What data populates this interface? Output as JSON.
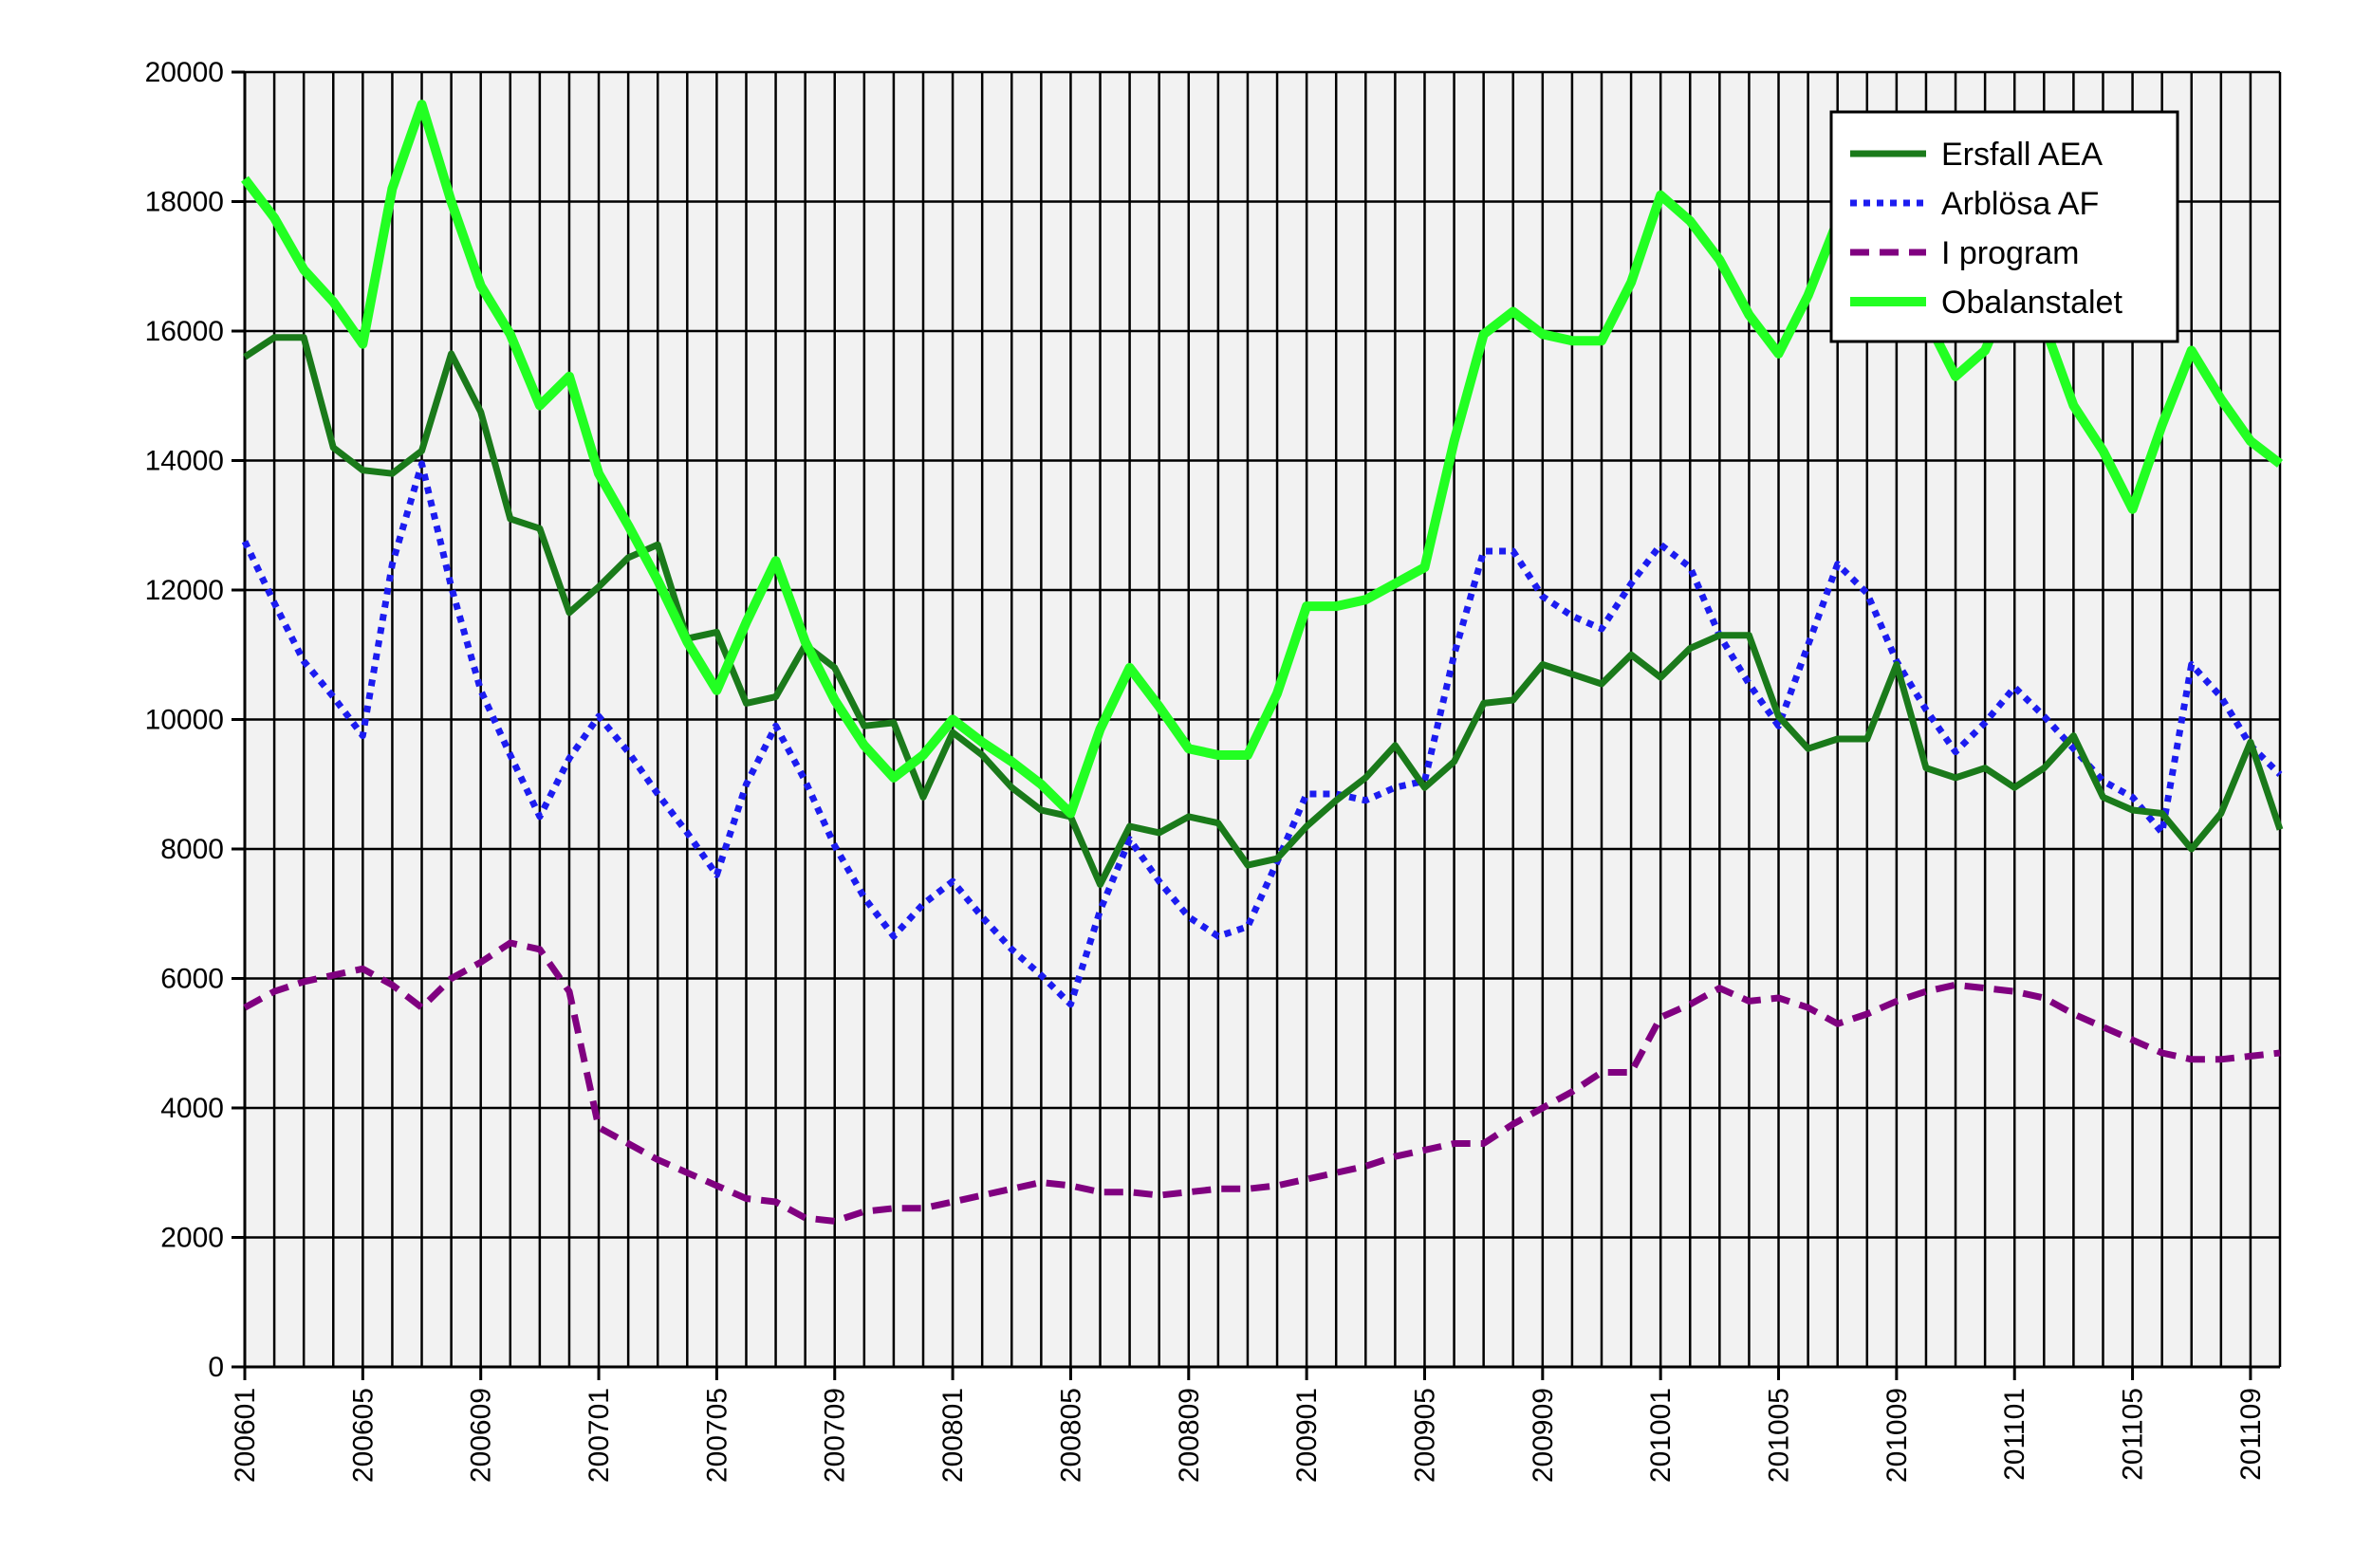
{
  "chart_data": {
    "type": "line",
    "title": "",
    "xlabel": "",
    "ylabel": "",
    "ylim": [
      0,
      20000
    ],
    "yticks": [
      0,
      2000,
      4000,
      6000,
      8000,
      10000,
      12000,
      14000,
      16000,
      18000,
      20000
    ],
    "xtick_labels": [
      "200601",
      "200605",
      "200609",
      "200701",
      "200705",
      "200709",
      "200801",
      "200805",
      "200809",
      "200901",
      "200905",
      "200909",
      "201001",
      "201005",
      "201009",
      "201101",
      "201105",
      "201109"
    ],
    "x": [
      "200601",
      "200602",
      "200603",
      "200604",
      "200605",
      "200606",
      "200607",
      "200608",
      "200609",
      "200610",
      "200611",
      "200612",
      "200701",
      "200702",
      "200703",
      "200704",
      "200705",
      "200706",
      "200707",
      "200708",
      "200709",
      "200710",
      "200711",
      "200712",
      "200801",
      "200802",
      "200803",
      "200804",
      "200805",
      "200806",
      "200807",
      "200808",
      "200809",
      "200810",
      "200811",
      "200812",
      "200901",
      "200902",
      "200903",
      "200904",
      "200905",
      "200906",
      "200907",
      "200908",
      "200909",
      "200910",
      "200911",
      "200912",
      "201001",
      "201002",
      "201003",
      "201004",
      "201005",
      "201006",
      "201007",
      "201008",
      "201009",
      "201010",
      "201011",
      "201012",
      "201101",
      "201102",
      "201103",
      "201104",
      "201105",
      "201106",
      "201107",
      "201108",
      "201109",
      "201110"
    ],
    "grid": true,
    "legend_position": "top-right",
    "series": [
      {
        "name": "Ersfall AEA",
        "color": "#1a7a1a",
        "style": "solid",
        "values": [
          15600,
          15900,
          15900,
          14200,
          13850,
          13800,
          14150,
          15650,
          14750,
          13100,
          12950,
          11650,
          12050,
          12500,
          12700,
          11250,
          11350,
          10250,
          10350,
          11150,
          10800,
          9900,
          9950,
          8800,
          9800,
          9450,
          8950,
          8600,
          8500,
          7450,
          8350,
          8250,
          8500,
          8400,
          7750,
          7850,
          8350,
          8750,
          9100,
          9600,
          8950,
          9350,
          10250,
          10300,
          10850,
          10700,
          10550,
          11000,
          10650,
          11100,
          11300,
          11300,
          10050,
          9550,
          9700,
          9700,
          10850,
          9250,
          9100,
          9250,
          8950,
          9250,
          9750,
          8800,
          8600,
          8550,
          8000,
          8550,
          9650,
          8300
        ]
      },
      {
        "name": "Arblösa AF",
        "color": "#1c1cf0",
        "style": "dotted",
        "values": [
          12750,
          11800,
          10900,
          10350,
          9750,
          12400,
          13950,
          12050,
          10450,
          9450,
          8500,
          9400,
          10050,
          9500,
          8850,
          8250,
          7600,
          9000,
          9900,
          9050,
          8050,
          7250,
          6650,
          7150,
          7500,
          6950,
          6450,
          6050,
          5600,
          7050,
          8150,
          7500,
          6950,
          6650,
          6800,
          7800,
          8850,
          8850,
          8750,
          8950,
          9050,
          11000,
          12600,
          12600,
          11900,
          11600,
          11400,
          12100,
          12700,
          12350,
          11300,
          10550,
          9900,
          11150,
          12400,
          11950,
          10900,
          10150,
          9500,
          9950,
          10500,
          10050,
          9550,
          9050,
          8800,
          8250,
          10850,
          10350,
          9600,
          9150
        ]
      },
      {
        "name": "I program",
        "color": "#800080",
        "style": "dashed",
        "values": [
          5550,
          5800,
          5950,
          6050,
          6150,
          5900,
          5550,
          6000,
          6250,
          6550,
          6450,
          5800,
          3700,
          3450,
          3200,
          3000,
          2800,
          2600,
          2550,
          2300,
          2250,
          2400,
          2450,
          2450,
          2550,
          2650,
          2750,
          2850,
          2800,
          2700,
          2700,
          2650,
          2700,
          2750,
          2750,
          2800,
          2900,
          3000,
          3100,
          3250,
          3350,
          3450,
          3450,
          3750,
          4000,
          4250,
          4550,
          4550,
          5400,
          5600,
          5850,
          5650,
          5700,
          5550,
          5300,
          5450,
          5650,
          5800,
          5900,
          5850,
          5800,
          5700,
          5450,
          5250,
          5050,
          4850,
          4750,
          4750,
          4800,
          4850
        ]
      },
      {
        "name": "Obalanstalet",
        "color": "#22ff22",
        "style": "solid",
        "values": [
          18350,
          17750,
          16950,
          16450,
          15800,
          18200,
          19500,
          18000,
          16700,
          15950,
          14850,
          15300,
          13800,
          13000,
          12150,
          11200,
          10450,
          11500,
          12450,
          11200,
          10300,
          9600,
          9100,
          9450,
          10000,
          9650,
          9350,
          9000,
          8550,
          9850,
          10800,
          10200,
          9550,
          9450,
          9450,
          10400,
          11750,
          11750,
          11850,
          12100,
          12350,
          14300,
          15950,
          16300,
          15950,
          15850,
          15850,
          16750,
          18100,
          17700,
          17100,
          16250,
          15650,
          16550,
          17700,
          18000,
          17100,
          16200,
          15300,
          15700,
          16750,
          16100,
          14850,
          14150,
          13250,
          14550,
          15700,
          14950,
          14300,
          13950
        ]
      }
    ]
  }
}
